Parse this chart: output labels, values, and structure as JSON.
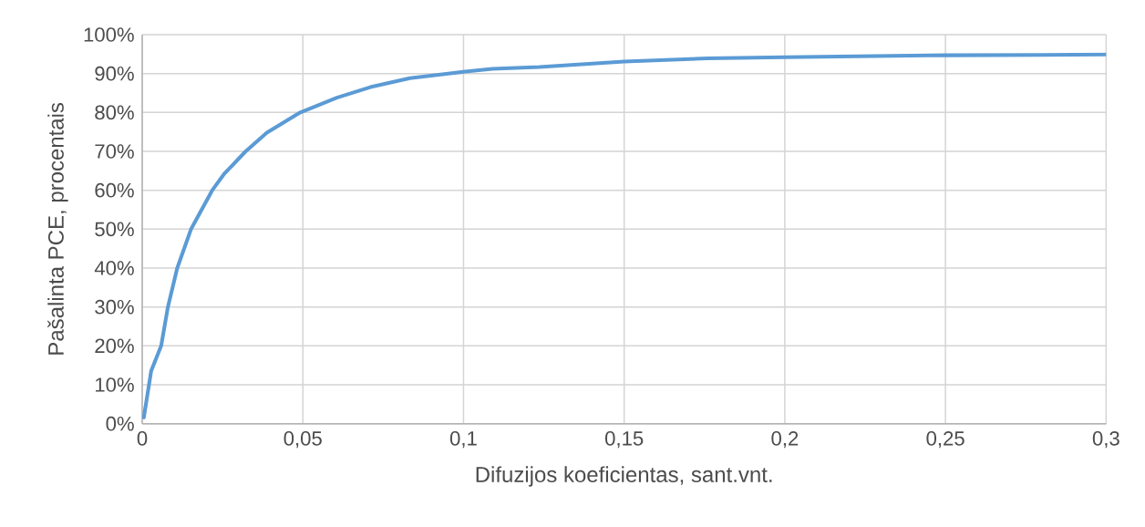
{
  "chart_data": {
    "type": "line",
    "xlabel": "Difuzijos koeficientas, sant.vnt.",
    "ylabel": "Pašalinta PCE, procentais",
    "x": [
      0.0005,
      0.0028,
      0.0059,
      0.008,
      0.0109,
      0.0152,
      0.0218,
      0.0256,
      0.0322,
      0.0388,
      0.0492,
      0.0606,
      0.071,
      0.0833,
      0.0994,
      0.109,
      0.1236,
      0.15,
      0.1759,
      0.2,
      0.228,
      0.25,
      0.2802,
      0.3
    ],
    "series": [
      {
        "color": "#5b9bd5",
        "values": [
          1.6,
          13.6,
          20,
          30,
          40,
          50,
          60,
          64.3,
          70,
          74.8,
          80,
          83.8,
          86.5,
          88.8,
          90.4,
          91.2,
          91.7,
          93.1,
          93.9,
          94.2,
          94.5,
          94.7,
          94.8,
          94.9
        ]
      }
    ],
    "xlim": [
      0,
      0.3
    ],
    "xticks": [
      {
        "value": 0,
        "label": "0"
      },
      {
        "value": 0.05,
        "label": "0,05"
      },
      {
        "value": 0.1,
        "label": "0,1"
      },
      {
        "value": 0.15,
        "label": "0,15"
      },
      {
        "value": 0.2,
        "label": "0,2"
      },
      {
        "value": 0.25,
        "label": "0,25"
      },
      {
        "value": 0.3,
        "label": "0,3"
      }
    ],
    "ylim": [
      0,
      100
    ],
    "yticks": [
      {
        "value": 0,
        "label": "0%"
      },
      {
        "value": 10,
        "label": "10%"
      },
      {
        "value": 20,
        "label": "20%"
      },
      {
        "value": 30,
        "label": "30%"
      },
      {
        "value": 40,
        "label": "40%"
      },
      {
        "value": 50,
        "label": "50%"
      },
      {
        "value": 60,
        "label": "60%"
      },
      {
        "value": 70,
        "label": "70%"
      },
      {
        "value": 80,
        "label": "80%"
      },
      {
        "value": 90,
        "label": "90%"
      },
      {
        "value": 100,
        "label": "100%"
      }
    ],
    "grid": true,
    "marker": "none",
    "line_style": "solid"
  }
}
